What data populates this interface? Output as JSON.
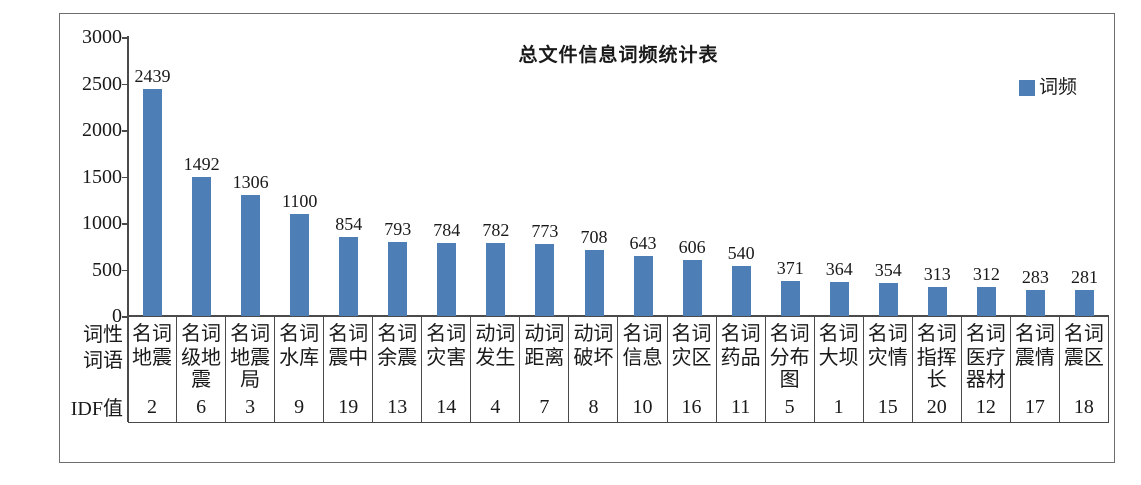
{
  "chart_data": {
    "type": "bar",
    "title": "总文件信息词频统计表",
    "legend": [
      "词频"
    ],
    "legend_position": "top-right",
    "bar_color": "#4e7eb6",
    "axis_color": "#4a4a4a",
    "grid": false,
    "ylim": [
      0,
      3000
    ],
    "yticks": [
      "3000",
      "2500",
      "2000",
      "1500",
      "1000",
      "500",
      "0"
    ],
    "categories": [
      "地震",
      "级地震",
      "地震局",
      "水库",
      "震中",
      "余震",
      "灾害",
      "发生",
      "距离",
      "破坏",
      "信息",
      "灾区",
      "药品",
      "分布图",
      "大坝",
      "灾情",
      "指挥长",
      "医疗器材",
      "震情",
      "震区"
    ],
    "series": [
      {
        "name": "词频",
        "values": [
          2439,
          1492,
          1306,
          1100,
          854,
          793,
          784,
          782,
          773,
          708,
          643,
          606,
          540,
          371,
          364,
          354,
          313,
          312,
          283,
          281
        ]
      }
    ],
    "table": {
      "row_headers": {
        "pos": "词性",
        "word": "词语",
        "idf": "IDF值"
      },
      "columns": [
        {
          "pos": "名词",
          "word": "地震",
          "idf": "2"
        },
        {
          "pos": "名词",
          "word": "级地震",
          "idf": "6"
        },
        {
          "pos": "名词",
          "word": "地震局",
          "idf": "3"
        },
        {
          "pos": "名词",
          "word": "水库",
          "idf": "9"
        },
        {
          "pos": "名词",
          "word": "震中",
          "idf": "19"
        },
        {
          "pos": "名词",
          "word": "余震",
          "idf": "13"
        },
        {
          "pos": "名词",
          "word": "灾害",
          "idf": "14"
        },
        {
          "pos": "动词",
          "word": "发生",
          "idf": "4"
        },
        {
          "pos": "动词",
          "word": "距离",
          "idf": "7"
        },
        {
          "pos": "动词",
          "word": "破坏",
          "idf": "8"
        },
        {
          "pos": "名词",
          "word": "信息",
          "idf": "10"
        },
        {
          "pos": "名词",
          "word": "灾区",
          "idf": "16"
        },
        {
          "pos": "名词",
          "word": "药品",
          "idf": "11"
        },
        {
          "pos": "名词",
          "word": "分布图",
          "idf": "5"
        },
        {
          "pos": "名词",
          "word": "大坝",
          "idf": "1"
        },
        {
          "pos": "名词",
          "word": "灾情",
          "idf": "15"
        },
        {
          "pos": "名词",
          "word": "指挥长",
          "idf": "20"
        },
        {
          "pos": "名词",
          "word": "医疗器材",
          "idf": "12"
        },
        {
          "pos": "名词",
          "word": "震情",
          "idf": "17"
        },
        {
          "pos": "名词",
          "word": "震区",
          "idf": "18"
        }
      ]
    }
  }
}
